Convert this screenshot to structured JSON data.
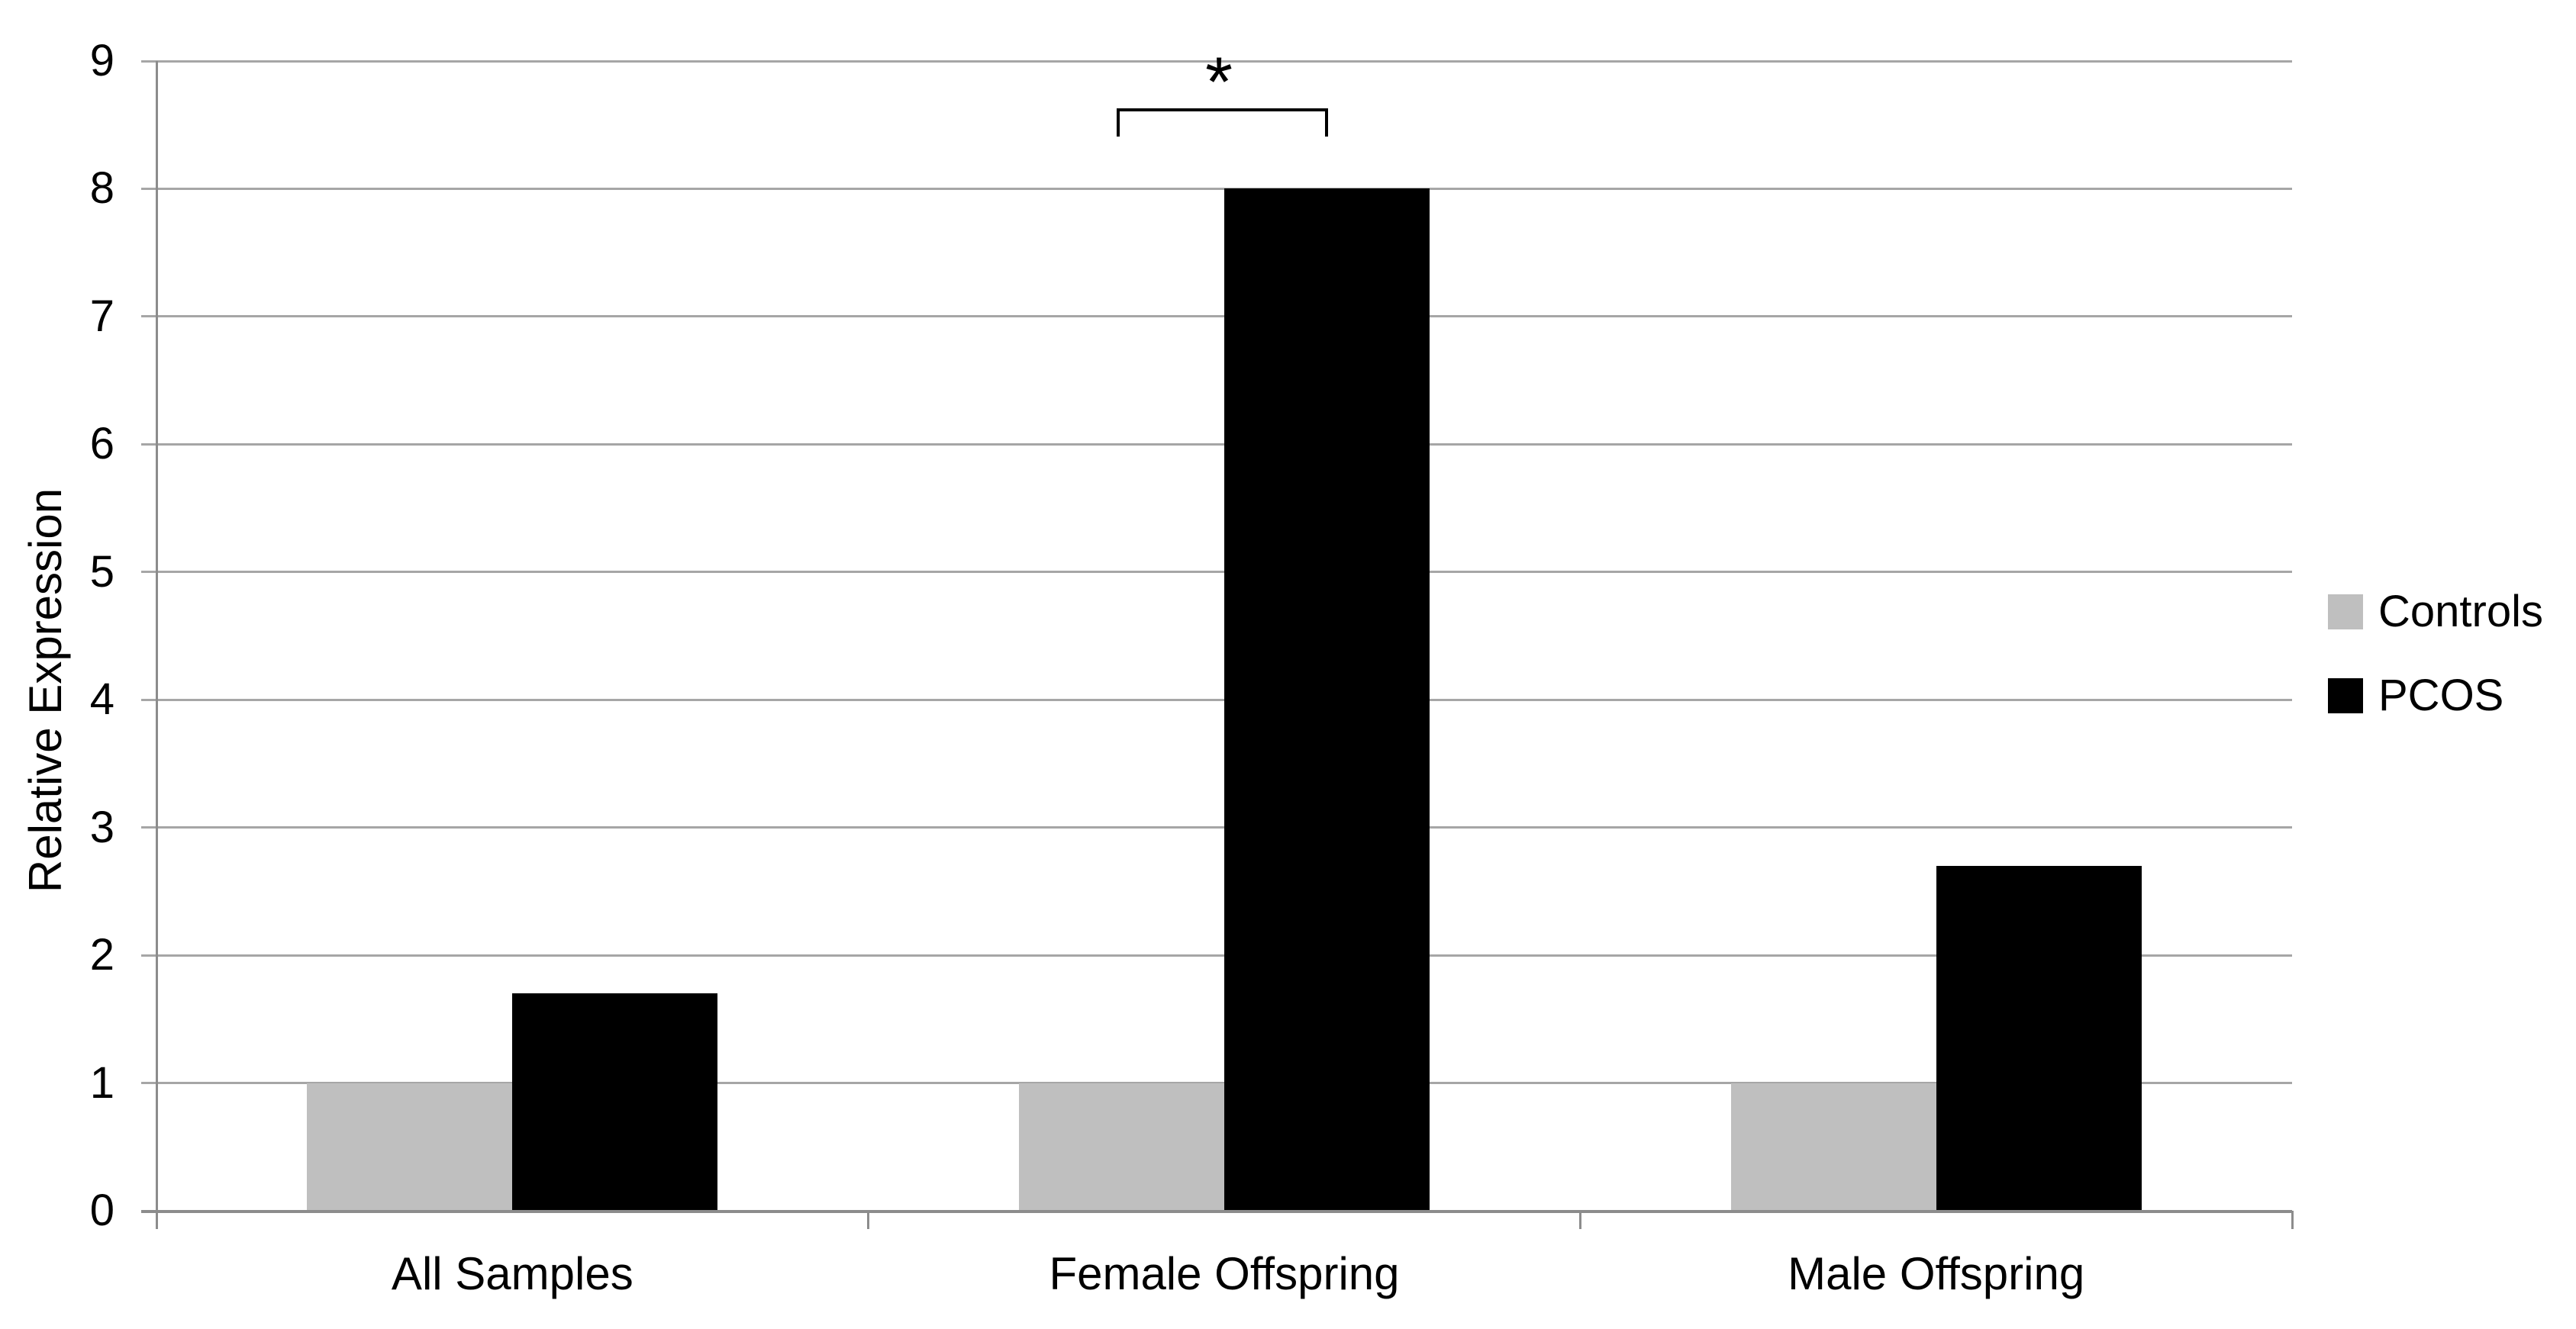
{
  "chart_data": {
    "type": "bar",
    "title": "",
    "categories": [
      "All Samples",
      "Female Offspring",
      "Male Offspring"
    ],
    "series": [
      {
        "name": "Controls",
        "color": "#bfbfbf",
        "values": [
          1.0,
          1.0,
          1.0
        ]
      },
      {
        "name": "PCOS",
        "color": "#000000",
        "values": [
          1.7,
          8.0,
          2.7
        ]
      }
    ],
    "xlabel": "",
    "ylabel": "Relative Expression",
    "ylim": [
      0,
      9
    ],
    "yticks": [
      0,
      1,
      2,
      3,
      4,
      5,
      6,
      7,
      8,
      9
    ],
    "grid": "horizontal-major",
    "legend_position": "right",
    "annotations": [
      {
        "type": "significance-bracket",
        "label": "*",
        "category": "Female Offspring",
        "category_index": 1,
        "between_series": [
          "Controls",
          "PCOS"
        ]
      }
    ]
  },
  "legend": {
    "items": [
      {
        "label": "Controls",
        "color": "#bfbfbf"
      },
      {
        "label": "PCOS",
        "color": "#000000"
      }
    ]
  },
  "colors": {
    "background": "#ffffff",
    "gridline": "#a6a6a6",
    "axis": "#8c8c8c",
    "text": "#000000"
  }
}
